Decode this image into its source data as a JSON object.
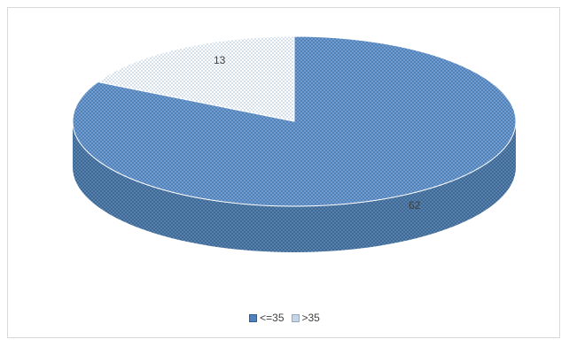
{
  "chart_data": {
    "type": "pie",
    "categories": [
      "<=35",
      ">35"
    ],
    "values": [
      62,
      13
    ],
    "data_labels": [
      "62",
      "13"
    ],
    "colors": [
      "#4f81bd",
      "#c6d5e8"
    ],
    "legend_position": "bottom",
    "style": "3d"
  },
  "legend": {
    "items": [
      {
        "label": "<=35",
        "color": "#4f81bd"
      },
      {
        "label": ">35",
        "color": "#c6d5e8"
      }
    ]
  }
}
